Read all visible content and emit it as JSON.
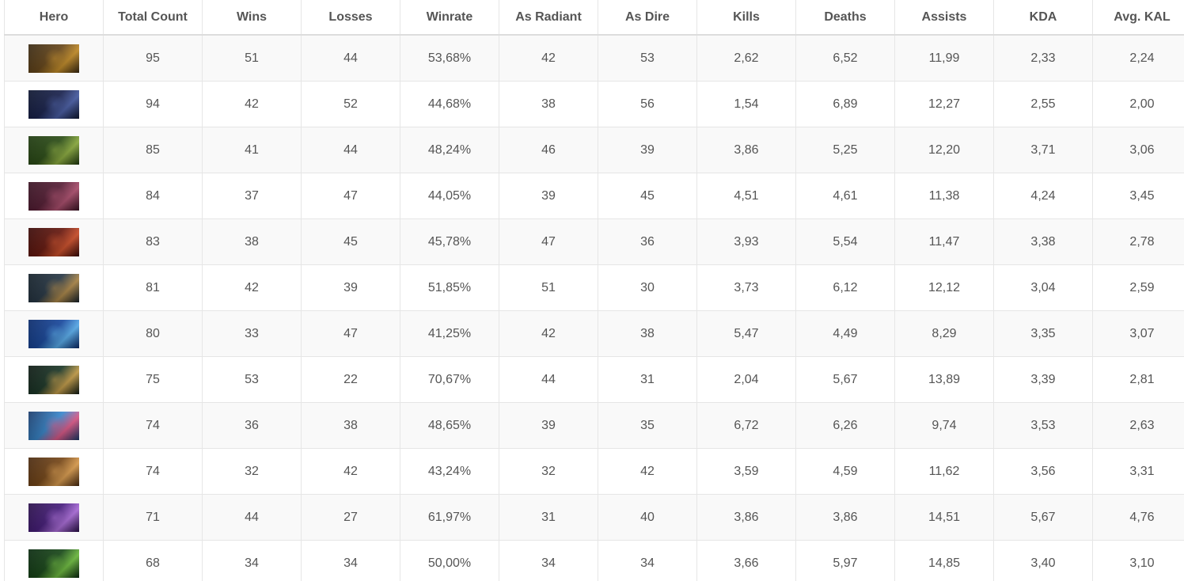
{
  "table": {
    "headers": [
      "Hero",
      "Total Count",
      "Wins",
      "Losses",
      "Winrate",
      "As Radiant",
      "As Dire",
      "Kills",
      "Deaths",
      "Assists",
      "KDA",
      "Avg. KAL"
    ],
    "rows": [
      {
        "hero_icon": "hero-portrait-icon",
        "colors": [
          "#3a2a14",
          "#c8902a",
          "#6b4a1c"
        ],
        "cells": [
          "95",
          "51",
          "44",
          "53,68%",
          "42",
          "53",
          "2,62",
          "6,52",
          "11,99",
          "2,33",
          "2,24"
        ]
      },
      {
        "hero_icon": "hero-portrait-icon",
        "colors": [
          "#0e1630",
          "#4a5fa8",
          "#1b2450"
        ],
        "cells": [
          "94",
          "42",
          "52",
          "44,68%",
          "38",
          "56",
          "1,54",
          "6,89",
          "12,27",
          "2,55",
          "2,00"
        ]
      },
      {
        "hero_icon": "hero-portrait-icon",
        "colors": [
          "#1f3a10",
          "#8fb040",
          "#2e5018"
        ],
        "cells": [
          "85",
          "41",
          "44",
          "48,24%",
          "46",
          "39",
          "3,86",
          "5,25",
          "12,20",
          "3,71",
          "3,06"
        ]
      },
      {
        "hero_icon": "hero-portrait-icon",
        "colors": [
          "#3a1424",
          "#b05070",
          "#5a2038"
        ],
        "cells": [
          "84",
          "37",
          "47",
          "44,05%",
          "39",
          "45",
          "4,51",
          "4,61",
          "11,38",
          "4,24",
          "3,45"
        ]
      },
      {
        "hero_icon": "hero-portrait-icon",
        "colors": [
          "#3a0a08",
          "#d0502a",
          "#6a1a10"
        ],
        "cells": [
          "83",
          "38",
          "45",
          "45,78%",
          "47",
          "36",
          "3,93",
          "5,54",
          "11,47",
          "3,38",
          "2,78"
        ]
      },
      {
        "hero_icon": "hero-portrait-icon",
        "colors": [
          "#14202a",
          "#b08a4a",
          "#2a3a48"
        ],
        "cells": [
          "81",
          "42",
          "39",
          "51,85%",
          "51",
          "30",
          "3,73",
          "6,12",
          "12,12",
          "3,04",
          "2,59"
        ]
      },
      {
        "hero_icon": "hero-portrait-icon",
        "colors": [
          "#0a2a6a",
          "#5ab0f0",
          "#1a4aa0"
        ],
        "cells": [
          "80",
          "33",
          "47",
          "41,25%",
          "42",
          "38",
          "5,47",
          "4,49",
          "8,29",
          "3,35",
          "3,07"
        ]
      },
      {
        "hero_icon": "hero-portrait-icon",
        "colors": [
          "#0e1a14",
          "#c8a04a",
          "#1e3a2a"
        ],
        "cells": [
          "75",
          "53",
          "22",
          "70,67%",
          "44",
          "31",
          "2,04",
          "5,67",
          "13,89",
          "3,39",
          "2,81"
        ]
      },
      {
        "hero_icon": "hero-portrait-icon",
        "colors": [
          "#1a3a6a",
          "#e05a8a",
          "#3a8ad0"
        ],
        "cells": [
          "74",
          "36",
          "38",
          "48,65%",
          "39",
          "35",
          "6,72",
          "6,26",
          "9,74",
          "3,53",
          "2,63"
        ]
      },
      {
        "hero_icon": "hero-portrait-icon",
        "colors": [
          "#4a2a10",
          "#e0a050",
          "#7a4a1a"
        ],
        "cells": [
          "74",
          "32",
          "42",
          "43,24%",
          "32",
          "42",
          "3,59",
          "4,59",
          "11,62",
          "3,56",
          "3,31"
        ]
      },
      {
        "hero_icon": "hero-portrait-icon",
        "colors": [
          "#2a104a",
          "#b070e0",
          "#4a2080"
        ],
        "cells": [
          "71",
          "44",
          "27",
          "61,97%",
          "31",
          "40",
          "3,86",
          "3,86",
          "14,51",
          "5,67",
          "4,76"
        ]
      },
      {
        "hero_icon": "hero-portrait-icon",
        "colors": [
          "#0a2a10",
          "#70c040",
          "#1a4a1a"
        ],
        "cells": [
          "68",
          "34",
          "34",
          "50,00%",
          "34",
          "34",
          "3,66",
          "5,97",
          "14,85",
          "3,40",
          "3,10"
        ]
      }
    ]
  }
}
